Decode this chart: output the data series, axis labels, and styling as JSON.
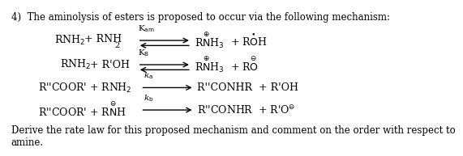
{
  "title_text": "4)  The aminolysis of esters is proposed to occur via the following mechanism:",
  "footer_text": "Derive the rate law for this proposed mechanism and comment on the order with respect to\namine.",
  "bg_color": "#ffffff",
  "text_color": "#000000",
  "font_family": "DejaVu Serif",
  "fontsize_main": 9.0,
  "fontsize_chem": 9.0
}
